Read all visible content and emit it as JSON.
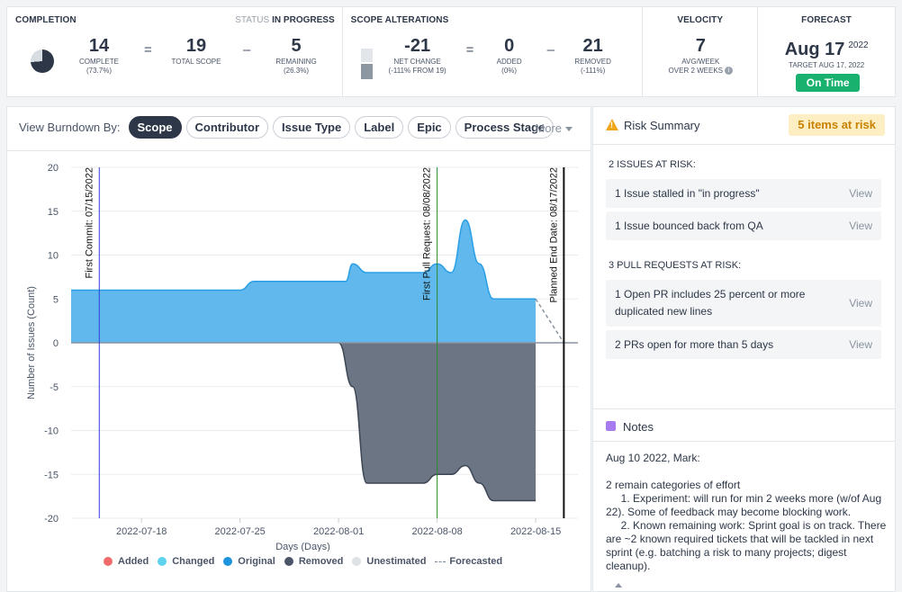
{
  "completion": {
    "title": "COMPLETION",
    "status_label": "STATUS",
    "status_value": "IN PROGRESS",
    "complete": {
      "value": "14",
      "label": "COMPLETE",
      "sub": "(73.7%)"
    },
    "eq": "=",
    "total": {
      "value": "19",
      "label": "TOTAL SCOPE"
    },
    "minus": "–",
    "remaining": {
      "value": "5",
      "label": "REMAINING",
      "sub": "(26.3%)"
    },
    "pie_fraction": 0.737
  },
  "scope_alterations": {
    "title": "SCOPE ALTERATIONS",
    "net": {
      "value": "-21",
      "label": "NET CHANGE",
      "sub": "(-111% FROM 19)"
    },
    "eq": "=",
    "added": {
      "value": "0",
      "label": "ADDED",
      "sub": "(0%)"
    },
    "minus": "–",
    "removed": {
      "value": "21",
      "label": "REMOVED",
      "sub": "(-111%)"
    }
  },
  "velocity": {
    "title": "VELOCITY",
    "value": "7",
    "label": "AVG/WEEK",
    "sub": "OVER 2 WEEKS",
    "info": "i"
  },
  "forecast": {
    "title": "FORECAST",
    "date": "Aug 17",
    "year": "2022",
    "target": "TARGET AUG 17, 2022",
    "badge": "On Time"
  },
  "burndown": {
    "label": "View Burndown By:",
    "pills": [
      "Scope",
      "Contributor",
      "Issue Type",
      "Label",
      "Epic",
      "Process Stage"
    ],
    "active": "Scope",
    "more": "More"
  },
  "chart_data": {
    "type": "area",
    "xlabel": "Days (Days)",
    "ylabel": "Number of Issues (Count)",
    "ylim": [
      -20,
      20
    ],
    "yticks": [
      20,
      15,
      10,
      5,
      0,
      -5,
      -10,
      -15,
      -20
    ],
    "xticks": [
      "2022-07-18",
      "2022-07-25",
      "2022-08-01",
      "2022-08-08",
      "2022-08-15"
    ],
    "xdomain": [
      "2022-07-13",
      "2022-08-18"
    ],
    "series": [
      {
        "name": "Original",
        "color": "#4fb0ea",
        "dates": [
          "2022-07-13",
          "2022-07-25",
          "2022-07-26",
          "2022-08-01",
          "2022-08-01.5",
          "2022-08-02",
          "2022-08-03",
          "2022-08-05",
          "2022-08-06",
          "2022-08-07",
          "2022-08-08",
          "2022-08-09",
          "2022-08-10",
          "2022-08-11",
          "2022-08-12",
          "2022-08-13",
          "2022-08-15"
        ],
        "values": [
          6,
          6,
          7,
          7,
          7,
          9,
          8,
          8,
          8,
          8,
          9,
          8,
          14,
          9,
          5,
          5,
          5
        ]
      },
      {
        "name": "Removed",
        "color": "#5c6675",
        "dates": [
          "2022-08-01",
          "2022-08-02",
          "2022-08-03",
          "2022-08-05",
          "2022-08-07",
          "2022-08-08",
          "2022-08-09",
          "2022-08-10",
          "2022-08-11",
          "2022-08-12",
          "2022-08-15"
        ],
        "values": [
          0,
          -5,
          -16,
          -16,
          -16,
          -15,
          -15,
          -14,
          -16,
          -18,
          -18
        ]
      }
    ],
    "forecast": {
      "name": "Forecasted",
      "dates": [
        "2022-08-15",
        "2022-08-17"
      ],
      "values": [
        5,
        0
      ]
    },
    "markers": [
      {
        "label": "First Commit: 07/15/2022",
        "date": "2022-07-15",
        "color": "#2f3fd6"
      },
      {
        "label": "First Pull Request: 08/08/2022",
        "date": "2022-08-08",
        "color": "#2e8a2e"
      },
      {
        "label": "Planned End Date: 08/17/2022",
        "date": "2022-08-17",
        "color": "#111111"
      }
    ],
    "legend": [
      {
        "name": "Added",
        "color": "#ef6b6b"
      },
      {
        "name": "Changed",
        "color": "#5ed3ee"
      },
      {
        "name": "Original",
        "color": "#1d94db"
      },
      {
        "name": "Removed",
        "color": "#4a5568"
      },
      {
        "name": "Unestimated",
        "color": "#dfe3e8"
      }
    ],
    "legend_forecast": "Forecasted"
  },
  "risk": {
    "title": "Risk Summary",
    "badge": "5 items at risk",
    "issues_label": "2 ISSUES AT RISK:",
    "issues": [
      {
        "text": "1 Issue stalled in \"in progress\"",
        "action": "View"
      },
      {
        "text": "1 Issue bounced back from QA",
        "action": "View"
      }
    ],
    "prs_label": "3 PULL REQUESTS AT RISK:",
    "prs": [
      {
        "text": "1 Open PR includes 25 percent or more duplicated new lines",
        "action": "View"
      },
      {
        "text": "2 PRs open for more than 5 days",
        "action": "View"
      }
    ]
  },
  "notes": {
    "title": "Notes",
    "body": "Aug 10 2022, Mark:\n\n2 remain categories of effort\n     1. Experiment: will run for min 2 weeks more (w/of Aug 22). Some of feedback may become blocking work.\n     2. Known remaining work: Sprint goal is on track. There are ~2 known required tickets that will be tackled in next sprint (e.g. batching a risk to many projects; digest cleanup)."
  }
}
